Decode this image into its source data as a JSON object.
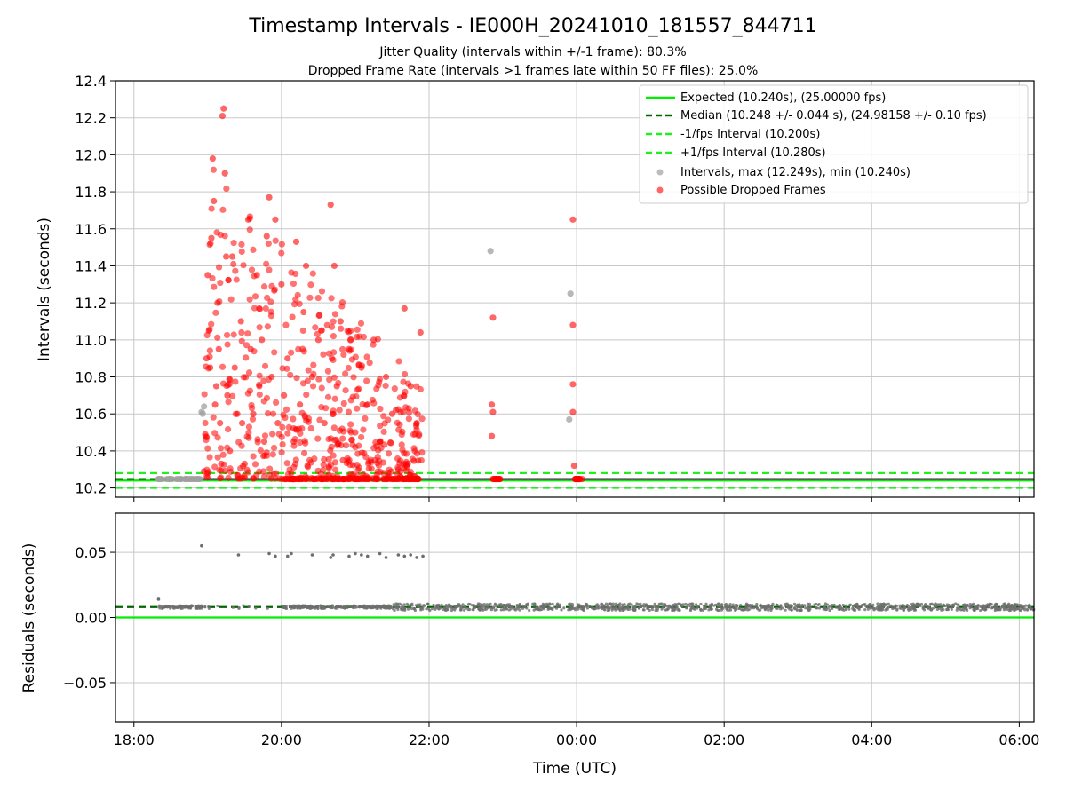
{
  "figure": {
    "title": "Timestamp Intervals - IE000H_20241010_181557_844711",
    "subtitle_1": "Jitter Quality (intervals within +/-1 frame): 80.3%",
    "subtitle_2": "Dropped Frame Rate (intervals >1 frames late within 50 FF files): 25.0%"
  },
  "colors": {
    "expected": "#00ee00",
    "median": "#006400",
    "fps_band": "#22ee22",
    "intervals": "#a0a0a0",
    "dropped": "#ff0000",
    "residuals": "#6e6e6e",
    "grid": "#c8c8c8"
  },
  "chart_data": [
    {
      "type": "scatter",
      "xlabel": "",
      "ylabel": "Intervals (seconds)",
      "xlim": [
        "17:45",
        "06:12"
      ],
      "ylim": [
        10.15,
        12.4
      ],
      "y_ticks": [
        "10.2",
        "10.4",
        "10.6",
        "10.8",
        "11.0",
        "11.2",
        "11.4",
        "11.6",
        "11.8",
        "12.0",
        "12.2",
        "12.4"
      ],
      "grid": true,
      "legend_position": "top-right",
      "reference_lines": [
        {
          "name": "Expected (10.240s), (25.00000 fps)",
          "y": 10.24,
          "style": "solid"
        },
        {
          "name": "Median (10.248 +/- 0.044 s), (24.98158 +/- 0.10 fps)",
          "y": 10.248,
          "style": "dashed"
        },
        {
          "name": "-1/fps Interval (10.200s)",
          "y": 10.2,
          "style": "dashed"
        },
        {
          "name": "+1/fps Interval (10.280s)",
          "y": 10.28,
          "style": "dashed"
        }
      ],
      "series": [
        {
          "name": "Intervals, max (12.249s), min (10.240s)",
          "points": [
            [
              "18:20",
              10.248
            ],
            [
              "18:55",
              10.61
            ],
            [
              "18:56",
              10.6
            ],
            [
              "18:57",
              10.64
            ],
            [
              "22:50",
              11.48
            ],
            [
              "23:55",
              11.25
            ],
            [
              "23:54",
              10.57
            ]
          ]
        },
        {
          "name": "Possible Dropped Frames",
          "points": [
            [
              "18:57",
              10.29
            ],
            [
              "18:58",
              10.49
            ],
            [
              "18:59",
              10.9
            ],
            [
              "19:00",
              11.35
            ],
            [
              "19:01",
              11.05
            ],
            [
              "19:02",
              10.85
            ],
            [
              "19:03",
              11.55
            ],
            [
              "19:04",
              11.98
            ],
            [
              "19:05",
              11.75
            ],
            [
              "19:06",
              10.65
            ],
            [
              "19:07",
              10.75
            ],
            [
              "19:08",
              11.2
            ],
            [
              "19:09",
              10.95
            ],
            [
              "19:10",
              10.55
            ],
            [
              "19:11",
              10.33
            ],
            [
              "19:12",
              12.21
            ],
            [
              "19:13",
              12.25
            ],
            [
              "19:14",
              11.9
            ],
            [
              "19:15",
              11.45
            ],
            [
              "19:16",
              10.7
            ],
            [
              "19:18",
              10.4
            ],
            [
              "19:20",
              11.45
            ],
            [
              "19:22",
              10.85
            ],
            [
              "19:24",
              10.6
            ],
            [
              "19:25",
              10.25
            ],
            [
              "19:27",
              11.1
            ],
            [
              "19:28",
              10.55
            ],
            [
              "19:30",
              10.33
            ],
            [
              "19:33",
              11.65
            ],
            [
              "19:35",
              10.95
            ],
            [
              "19:37",
              10.6
            ],
            [
              "19:40",
              11.35
            ],
            [
              "19:42",
              10.75
            ],
            [
              "19:44",
              11.0
            ],
            [
              "19:46",
              10.45
            ],
            [
              "19:48",
              11.56
            ],
            [
              "19:50",
              11.77
            ],
            [
              "19:52",
              10.8
            ],
            [
              "19:55",
              11.65
            ],
            [
              "19:57",
              10.55
            ],
            [
              "20:00",
              11.3
            ],
            [
              "20:02",
              10.7
            ],
            [
              "20:05",
              10.9
            ],
            [
              "20:08",
              10.28
            ],
            [
              "20:10",
              10.45
            ],
            [
              "20:12",
              11.53
            ],
            [
              "20:15",
              10.65
            ],
            [
              "20:18",
              11.15
            ],
            [
              "20:20",
              11.4
            ],
            [
              "20:25",
              10.8
            ],
            [
              "20:30",
              11.0
            ],
            [
              "20:35",
              10.55
            ],
            [
              "20:40",
              11.73
            ],
            [
              "20:43",
              11.4
            ],
            [
              "20:45",
              10.75
            ],
            [
              "20:48",
              11.1
            ],
            [
              "20:50",
              10.35
            ],
            [
              "20:55",
              10.95
            ],
            [
              "21:00",
              10.5
            ],
            [
              "21:05",
              10.85
            ],
            [
              "21:10",
              10.65
            ],
            [
              "21:15",
              11.0
            ],
            [
              "21:20",
              10.45
            ],
            [
              "21:25",
              10.8
            ],
            [
              "21:30",
              10.6
            ],
            [
              "21:35",
              10.3
            ],
            [
              "21:40",
              11.17
            ],
            [
              "21:45",
              10.75
            ],
            [
              "21:50",
              10.55
            ],
            [
              "21:53",
              11.04
            ],
            [
              "22:52",
              11.12
            ],
            [
              "22:51",
              10.65
            ],
            [
              "22:52",
              10.61
            ],
            [
              "22:51",
              10.48
            ],
            [
              "22:55",
              10.248
            ],
            [
              "23:57",
              11.65
            ],
            [
              "23:57",
              11.08
            ],
            [
              "23:57",
              10.76
            ],
            [
              "23:57",
              10.61
            ],
            [
              "23:58",
              10.32
            ],
            [
              "00:02",
              10.248
            ]
          ]
        }
      ]
    },
    {
      "type": "scatter",
      "xlabel": "Time (UTC)",
      "ylabel": "Residuals (seconds)",
      "x_ticks": [
        "18:00",
        "20:00",
        "22:00",
        "00:00",
        "02:00",
        "04:00",
        "06:00"
      ],
      "y_ticks": [
        "−0.05",
        "0.00",
        "0.05"
      ],
      "ylim": [
        -0.08,
        0.08
      ],
      "grid": true,
      "reference_lines": [
        {
          "name": "zero",
          "y": 0.0,
          "style": "solid"
        },
        {
          "name": "median residual",
          "y": 0.008,
          "style": "dashed"
        }
      ],
      "series": [
        {
          "name": "residuals",
          "points": [
            [
              "18:20",
              0.014
            ],
            [
              "18:55",
              0.055
            ],
            [
              "19:25",
              0.048
            ],
            [
              "19:50",
              0.049
            ],
            [
              "19:55",
              0.047
            ],
            [
              "20:05",
              0.047
            ],
            [
              "20:08",
              0.049
            ],
            [
              "20:25",
              0.048
            ],
            [
              "20:40",
              0.046
            ],
            [
              "20:42",
              0.048
            ],
            [
              "20:55",
              0.047
            ],
            [
              "21:00",
              0.049
            ],
            [
              "21:05",
              0.048
            ],
            [
              "21:10",
              0.047
            ],
            [
              "21:20",
              0.049
            ],
            [
              "21:25",
              0.046
            ],
            [
              "21:35",
              0.048
            ],
            [
              "21:40",
              0.047
            ],
            [
              "21:45",
              0.048
            ],
            [
              "21:50",
              0.046
            ],
            [
              "21:55",
              0.047
            ]
          ],
          "baseline_band": {
            "from": "18:20",
            "to": "06:12",
            "center": 0.008,
            "spread": 0.004
          }
        }
      ]
    }
  ]
}
